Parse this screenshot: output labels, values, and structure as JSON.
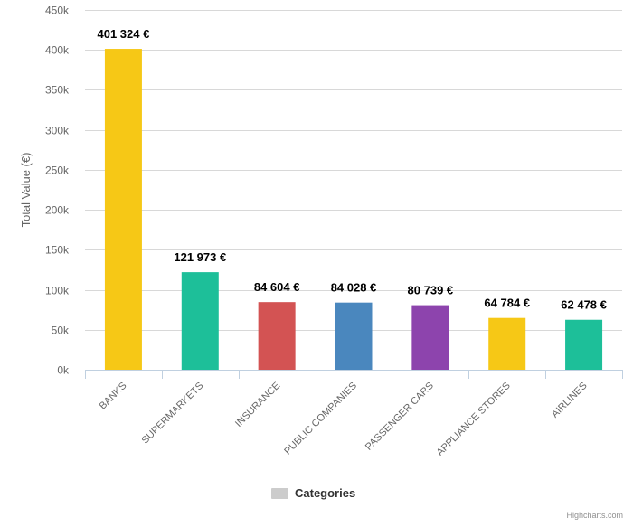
{
  "chart_data": {
    "type": "bar",
    "ylabel": "Total Value (€)",
    "ylim": [
      0,
      450000
    ],
    "yticks": [
      0,
      50000,
      100000,
      150000,
      200000,
      250000,
      300000,
      350000,
      400000,
      450000
    ],
    "ytick_labels": [
      "0k",
      "50k",
      "100k",
      "150k",
      "200k",
      "250k",
      "300k",
      "350k",
      "400k",
      "450k"
    ],
    "grid": true,
    "categories": [
      "BANKS",
      "SUPERMARKETS",
      "INSURANCE",
      "PUBLIC COMPANIES",
      "PASSENGER CARS",
      "APPLIANCE STORES",
      "AIRLINES"
    ],
    "values": [
      401324,
      121973,
      84604,
      84028,
      80739,
      64784,
      62478
    ],
    "data_labels": [
      "401 324 €",
      "121 973 €",
      "84 604 €",
      "84 028 €",
      "80 739 €",
      "64 784 €",
      "62 478 €"
    ],
    "colors": [
      "#f6c816",
      "#1dbf99",
      "#d35353",
      "#4a87be",
      "#8d44ad",
      "#f6c816",
      "#1dbf99"
    ],
    "legend": {
      "label": "Categories",
      "position": "bottom-center",
      "color": "#cccccc"
    }
  },
  "credits": "Highcharts.com"
}
